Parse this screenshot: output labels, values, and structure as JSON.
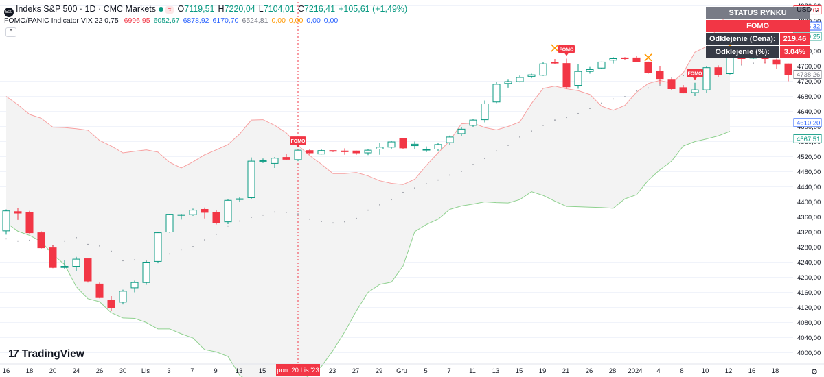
{
  "header": {
    "symbol_logo": "500",
    "title": "Indeks S&P 500 · 1D · CMC Markets",
    "wave": "≈",
    "ohlc": [
      {
        "label": "O",
        "value": "7119,51"
      },
      {
        "label": "H",
        "value": "7220,04"
      },
      {
        "label": "L",
        "value": "7104,01"
      },
      {
        "label": "C",
        "value": "7216,41"
      }
    ],
    "change": "+105,61 (+1,49%)"
  },
  "indicator": {
    "name": "FOMO/PANIC Indicator VIX 22 0,75",
    "values": [
      {
        "text": "6996,95",
        "color": "#f23645"
      },
      {
        "text": "6052,67",
        "color": "#089981"
      },
      {
        "text": "6878,92",
        "color": "#2962ff"
      },
      {
        "text": "6170,70",
        "color": "#2962ff"
      },
      {
        "text": "6524,81",
        "color": "#787b86"
      },
      {
        "text": "0,00",
        "color": "#ff9800"
      },
      {
        "text": "0,00",
        "color": "#ff9800"
      },
      {
        "text": "0,00",
        "color": "#2962ff"
      },
      {
        "text": "0,00",
        "color": "#2962ff"
      }
    ],
    "collapse": "^"
  },
  "status_table": {
    "title": "STATUS RYNKU",
    "state": "FOMO",
    "rows": [
      {
        "label": "Odklejenie (Cena):",
        "value": "219.46"
      },
      {
        "label": "Odklejenie (%):",
        "value": "3.04%"
      }
    ]
  },
  "currency": "USD ⌄",
  "branding": {
    "mark": "17",
    "name": "TradingView"
  },
  "settings_icon": "⚙",
  "colors": {
    "up": "#089981",
    "down": "#f23645",
    "upper": "#f7a0a0",
    "lower": "#8fd18f",
    "mid": "#2962ff",
    "marker": "#ff9800",
    "band_fill": "#f3f3f3"
  },
  "chart_data": {
    "type": "candlestick",
    "x_labels": [
      "16",
      "18",
      "20",
      "24",
      "26",
      "30",
      "Lis",
      "3",
      "7",
      "9",
      "13",
      "15",
      "pon. 20 Lis '23",
      "23",
      "27",
      "29",
      "Gru",
      "5",
      "7",
      "11",
      "13",
      "15",
      "19",
      "21",
      "26",
      "28",
      "2024",
      "4",
      "8",
      "10",
      "12",
      "16",
      "18"
    ],
    "crosshair_label": "pon. 20 Lis '23",
    "y_ticks": [
      4000,
      4040,
      4080,
      4120,
      4160,
      4200,
      4240,
      4280,
      4320,
      4360,
      4400,
      4440,
      4480,
      4520,
      4560,
      4600,
      4640,
      4680,
      4720,
      4760,
      4800,
      4840,
      4880,
      4920
    ],
    "ylim": [
      3970,
      4930
    ],
    "price_labels": [
      {
        "text": "4909,01",
        "value": 4909.01,
        "color": "#f23645"
      },
      {
        "text": "4866,32",
        "value": 4866.32,
        "color": "#2962ff"
      },
      {
        "text": "4839,25",
        "value": 4839.25,
        "color": "#089981"
      },
      {
        "text": "4738,26",
        "value": 4738.26,
        "color": "#787b86"
      },
      {
        "text": "4610,20",
        "value": 4610.2,
        "color": "#2962ff"
      },
      {
        "text": "4567,51",
        "value": 4567.51,
        "color": "#089981"
      }
    ],
    "candles": [
      {
        "o": 4323,
        "h": 4380,
        "l": 4313,
        "c": 4376
      },
      {
        "o": 4374,
        "h": 4384,
        "l": 4352,
        "c": 4370
      },
      {
        "o": 4372,
        "h": 4376,
        "l": 4316,
        "c": 4318
      },
      {
        "o": 4318,
        "h": 4322,
        "l": 4276,
        "c": 4278
      },
      {
        "o": 4278,
        "h": 4285,
        "l": 4224,
        "c": 4226
      },
      {
        "o": 4226,
        "h": 4245,
        "l": 4222,
        "c": 4229
      },
      {
        "o": 4229,
        "h": 4254,
        "l": 4216,
        "c": 4248
      },
      {
        "o": 4249,
        "h": 4249,
        "l": 4186,
        "c": 4190
      },
      {
        "o": 4182,
        "h": 4186,
        "l": 4144,
        "c": 4146
      },
      {
        "o": 4140,
        "h": 4150,
        "l": 4110,
        "c": 4120
      },
      {
        "o": 4134,
        "h": 4167,
        "l": 4128,
        "c": 4163
      },
      {
        "o": 4172,
        "h": 4191,
        "l": 4160,
        "c": 4186
      },
      {
        "o": 4186,
        "h": 4243,
        "l": 4180,
        "c": 4240
      },
      {
        "o": 4242,
        "h": 4320,
        "l": 4237,
        "c": 4318
      },
      {
        "o": 4320,
        "h": 4368,
        "l": 4318,
        "c": 4367
      },
      {
        "o": 4366,
        "h": 4368,
        "l": 4353,
        "c": 4366
      },
      {
        "o": 4366,
        "h": 4382,
        "l": 4363,
        "c": 4378
      },
      {
        "o": 4380,
        "h": 4385,
        "l": 4356,
        "c": 4372
      },
      {
        "o": 4371,
        "h": 4377,
        "l": 4340,
        "c": 4345
      },
      {
        "o": 4347,
        "h": 4408,
        "l": 4341,
        "c": 4404
      },
      {
        "o": 4407,
        "h": 4413,
        "l": 4399,
        "c": 4408
      },
      {
        "o": 4411,
        "h": 4518,
        "l": 4408,
        "c": 4508
      },
      {
        "o": 4507,
        "h": 4515,
        "l": 4503,
        "c": 4509
      },
      {
        "o": 4502,
        "h": 4519,
        "l": 4490,
        "c": 4516
      },
      {
        "o": 4518,
        "h": 4527,
        "l": 4510,
        "c": 4513
      },
      {
        "o": 4512,
        "h": 4537,
        "l": 4508,
        "c": 4537
      },
      {
        "o": 4536,
        "h": 4540,
        "l": 4525,
        "c": 4530
      },
      {
        "o": 4527,
        "h": 4539,
        "l": 4526,
        "c": 4536
      },
      {
        "o": 4536,
        "h": 4536,
        "l": 4532,
        "c": 4535
      },
      {
        "o": 4535,
        "h": 4542,
        "l": 4525,
        "c": 4533
      },
      {
        "o": 4535,
        "h": 4536,
        "l": 4525,
        "c": 4530
      },
      {
        "o": 4530,
        "h": 4541,
        "l": 4524,
        "c": 4537
      },
      {
        "o": 4540,
        "h": 4556,
        "l": 4525,
        "c": 4545
      },
      {
        "o": 4545,
        "h": 4561,
        "l": 4541,
        "c": 4559
      },
      {
        "o": 4569,
        "h": 4570,
        "l": 4540,
        "c": 4543
      },
      {
        "o": 4549,
        "h": 4560,
        "l": 4540,
        "c": 4553
      },
      {
        "o": 4539,
        "h": 4547,
        "l": 4532,
        "c": 4539
      },
      {
        "o": 4540,
        "h": 4557,
        "l": 4535,
        "c": 4552
      },
      {
        "o": 4557,
        "h": 4576,
        "l": 4551,
        "c": 4572
      },
      {
        "o": 4581,
        "h": 4598,
        "l": 4575,
        "c": 4593
      },
      {
        "o": 4603,
        "h": 4619,
        "l": 4599,
        "c": 4617
      },
      {
        "o": 4618,
        "h": 4669,
        "l": 4611,
        "c": 4660
      },
      {
        "o": 4665,
        "h": 4718,
        "l": 4662,
        "c": 4712
      },
      {
        "o": 4714,
        "h": 4726,
        "l": 4703,
        "c": 4719
      },
      {
        "o": 4719,
        "h": 4735,
        "l": 4717,
        "c": 4730
      },
      {
        "o": 4733,
        "h": 4740,
        "l": 4728,
        "c": 4737
      },
      {
        "o": 4736,
        "h": 4770,
        "l": 4734,
        "c": 4766
      },
      {
        "o": 4770,
        "h": 4779,
        "l": 4765,
        "c": 4768
      },
      {
        "o": 4767,
        "h": 4780,
        "l": 4700,
        "c": 4705
      },
      {
        "o": 4709,
        "h": 4766,
        "l": 4700,
        "c": 4746
      },
      {
        "o": 4746,
        "h": 4758,
        "l": 4740,
        "c": 4751
      },
      {
        "o": 4755,
        "h": 4772,
        "l": 4752,
        "c": 4771
      },
      {
        "o": 4776,
        "h": 4784,
        "l": 4767,
        "c": 4780
      },
      {
        "o": 4782,
        "h": 4784,
        "l": 4776,
        "c": 4780
      },
      {
        "o": 4782,
        "h": 4787,
        "l": 4770,
        "c": 4771
      },
      {
        "o": 4771,
        "h": 4772,
        "l": 4740,
        "c": 4742
      },
      {
        "o": 4746,
        "h": 4760,
        "l": 4713,
        "c": 4727
      },
      {
        "o": 4725,
        "h": 4728,
        "l": 4697,
        "c": 4700
      },
      {
        "o": 4703,
        "h": 4710,
        "l": 4688,
        "c": 4689
      },
      {
        "o": 4690,
        "h": 4716,
        "l": 4681,
        "c": 4697
      },
      {
        "o": 4697,
        "h": 4760,
        "l": 4689,
        "c": 4756
      },
      {
        "o": 4756,
        "h": 4762,
        "l": 4730,
        "c": 4737
      },
      {
        "o": 4740,
        "h": 4786,
        "l": 4738,
        "c": 4783
      },
      {
        "o": 4782,
        "h": 4790,
        "l": 4764,
        "c": 4780
      },
      {
        "o": 4782,
        "h": 4799,
        "l": 4779,
        "c": 4783
      },
      {
        "o": 4783,
        "h": 4786,
        "l": 4767,
        "c": 4780
      },
      {
        "o": 4777,
        "h": 4780,
        "l": 4753,
        "c": 4765
      },
      {
        "o": 4766,
        "h": 4767,
        "l": 4720,
        "c": 4738
      },
      {
        "o": 4739,
        "h": 4782,
        "l": 4738,
        "c": 4780
      },
      {
        "o": 4780,
        "h": 4840,
        "l": 4778,
        "c": 4839
      }
    ],
    "upper_band": [
      4680,
      4658,
      4632,
      4622,
      4598,
      4597,
      4594,
      4590,
      4563,
      4548,
      4530,
      4534,
      4538,
      4532,
      4505,
      4490,
      4506,
      4525,
      4538,
      4552,
      4580,
      4617,
      4618,
      4603,
      4583,
      4550,
      4523,
      4500,
      4475,
      4475,
      4478,
      4469,
      4456,
      4449,
      4446,
      4460,
      4497,
      4530,
      4562,
      4607,
      4609,
      4597,
      4591,
      4600,
      4612,
      4661,
      4701,
      4707,
      4700,
      4695,
      4685,
      4654,
      4643,
      4656,
      4691,
      4714,
      4722,
      4715,
      4742,
      4797,
      4812,
      4868,
      4906
    ],
    "lower_band": [
      4345,
      4322,
      4311,
      4295,
      4260,
      4234,
      4175,
      4143,
      4135,
      4106,
      4092,
      4091,
      4080,
      4063,
      4063,
      4050,
      4039,
      4008,
      4002,
      3990,
      3940,
      3920,
      3900,
      3900,
      3900,
      3920,
      3940,
      3963,
      4006,
      4055,
      4111,
      4160,
      4181,
      4187,
      4230,
      4321,
      4340,
      4354,
      4380,
      4389,
      4394,
      4400,
      4398,
      4397,
      4406,
      4427,
      4417,
      4402,
      4388,
      4387,
      4386,
      4385,
      4383,
      4408,
      4419,
      4457,
      4485,
      4508,
      4548,
      4560,
      4567,
      4575,
      4587
    ],
    "mid_dots": [
      4302,
      4296,
      4298,
      4294,
      4283,
      4296,
      4305,
      4287,
      4283,
      4269,
      4244,
      4246,
      4243,
      4255,
      4262,
      4273,
      4281,
      4299,
      4314,
      4336,
      4349,
      4359,
      4365,
      4373,
      4372,
      4368,
      4354,
      4348,
      4344,
      4347,
      4356,
      4378,
      4392,
      4406,
      4425,
      4437,
      4448,
      4458,
      4471,
      4481,
      4499,
      4515,
      4535,
      4550,
      4572,
      4588,
      4603,
      4617,
      4624,
      4634,
      4648,
      4662,
      4673,
      4679,
      4694,
      4702,
      4710,
      4730,
      4735,
      4742,
      4754,
      4760,
      4764,
      4763,
      4768,
      4770
    ],
    "fomo_markers": [
      {
        "index": 25,
        "label": "FOMO"
      },
      {
        "index": 48,
        "label": "FOMO"
      },
      {
        "index": 59,
        "label": "FOMO"
      }
    ],
    "x_markers": [
      {
        "index": 47,
        "value": 4808
      },
      {
        "index": 55,
        "value": 4783
      },
      {
        "index": 62,
        "value": 4813
      }
    ]
  }
}
